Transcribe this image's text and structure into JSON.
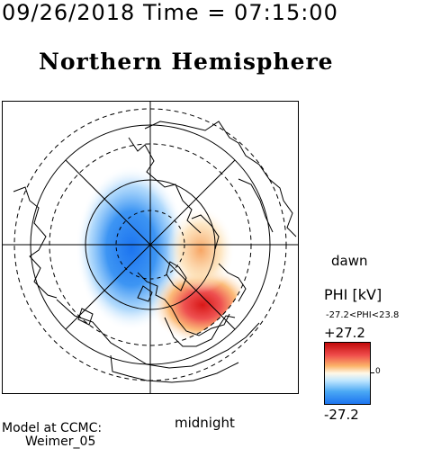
{
  "header": {
    "timestamp": "09/26/2018 Time = 07:15:00",
    "title": "Northern Hemisphere"
  },
  "map": {
    "label_bottom": "midnight",
    "label_right": "dawn"
  },
  "colorbar": {
    "title": "PHI [kV]",
    "range_text": "-27.2<PHI<23.8",
    "max_label": "+27.2",
    "zero_label": "0",
    "min_label": "-27.2",
    "colors": {
      "positive": "#d61a1a",
      "neutral": "#ffffff",
      "negative": "#1c74f0"
    }
  },
  "credit": {
    "line1": "Model at CCMC:",
    "line2": "Weimer_05"
  }
}
